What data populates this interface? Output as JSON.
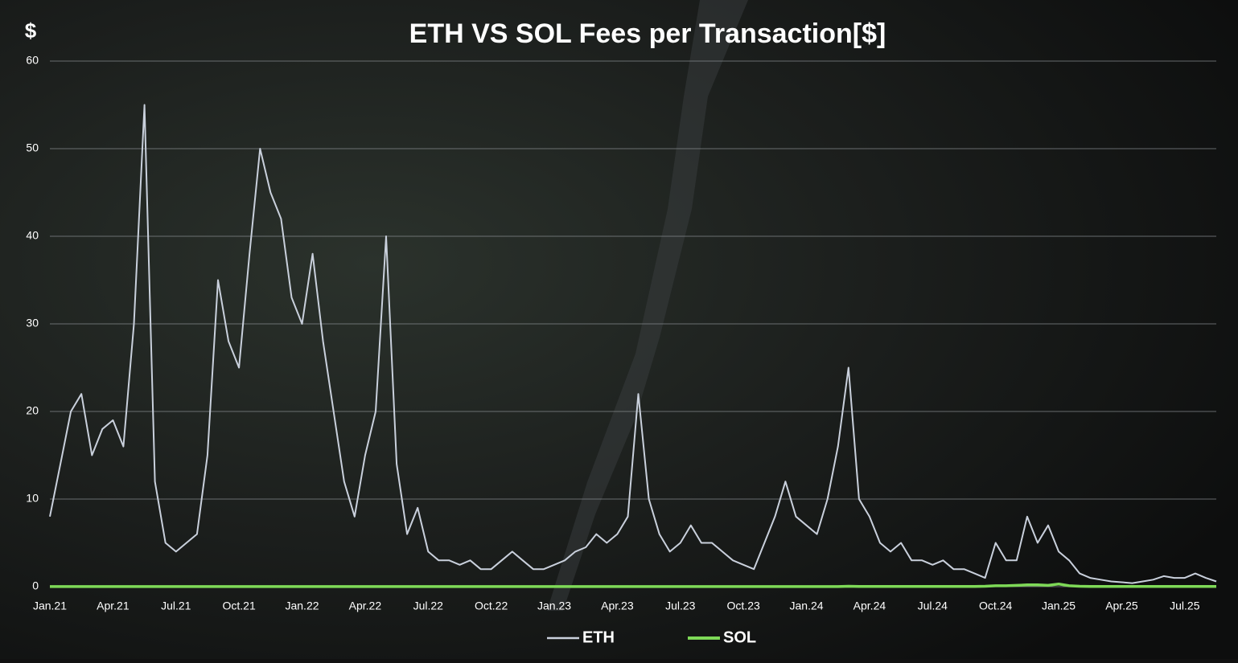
{
  "chart_data": {
    "type": "line",
    "title": "ETH VS SOL Fees per Transaction[$]",
    "y_label": "$",
    "categories": [
      "Jan.21",
      null,
      null,
      null,
      null,
      null,
      "Apr.21",
      null,
      null,
      null,
      null,
      null,
      "Jul.21",
      null,
      null,
      null,
      null,
      null,
      "Oct.21",
      null,
      null,
      null,
      null,
      null,
      "Jan.22",
      null,
      null,
      null,
      null,
      null,
      "Apr.22",
      null,
      null,
      null,
      null,
      null,
      "Jul.22",
      null,
      null,
      null,
      null,
      null,
      "Oct.22",
      null,
      null,
      null,
      null,
      null,
      "Jan.23",
      null,
      null,
      null,
      null,
      null,
      "Apr.23",
      null,
      null,
      null,
      null,
      null,
      "Jul.23",
      null,
      null,
      null,
      null,
      null,
      "Oct.23",
      null,
      null,
      null,
      null,
      null,
      "Jan.24",
      null,
      null,
      null,
      null,
      null,
      "Apr.24",
      null,
      null,
      null,
      null,
      null,
      "Jul.24",
      null,
      null,
      null,
      null,
      null,
      "Oct.24",
      null,
      null,
      null,
      null,
      null,
      "Jan.25",
      null,
      null,
      null,
      null,
      null,
      "Apr.25",
      null,
      null,
      null,
      null,
      null,
      "Jul.25",
      null,
      null,
      null
    ],
    "series": [
      {
        "name": "ETH",
        "color": "#c9d0dc",
        "values": [
          8,
          14,
          20,
          22,
          15,
          18,
          19,
          16,
          30,
          55,
          12,
          5,
          4,
          5,
          6,
          15,
          35,
          28,
          25,
          38,
          50,
          45,
          42,
          33,
          30,
          38,
          28,
          20,
          12,
          8,
          15,
          20,
          40,
          14,
          6,
          9,
          4,
          3,
          3,
          2.5,
          3,
          2,
          2,
          3,
          4,
          3,
          2,
          2,
          2.5,
          3,
          4,
          4.5,
          6,
          5,
          6,
          8,
          22,
          10,
          6,
          4,
          5,
          7,
          5,
          5,
          4,
          3,
          2.5,
          2,
          5,
          8,
          12,
          8,
          7,
          6,
          10,
          16,
          25,
          10,
          8,
          5,
          4,
          5,
          3,
          3,
          2.5,
          3,
          2,
          2,
          1.5,
          1,
          5,
          3,
          3,
          8,
          5,
          7,
          4,
          3,
          1.5,
          1,
          0.8,
          0.6,
          0.5,
          0.4,
          0.6,
          0.8,
          1.2,
          1,
          1,
          1.5,
          1,
          0.6
        ]
      },
      {
        "name": "SOL",
        "color": "#7ed957",
        "values": [
          0.01,
          0.01,
          0.01,
          0.01,
          0.01,
          0.01,
          0.01,
          0.01,
          0.01,
          0.01,
          0.01,
          0.01,
          0.01,
          0.01,
          0.01,
          0.01,
          0.01,
          0.01,
          0.01,
          0.01,
          0.01,
          0.01,
          0.01,
          0.01,
          0.01,
          0.01,
          0.01,
          0.01,
          0.01,
          0.01,
          0.01,
          0.01,
          0.01,
          0.01,
          0.01,
          0.01,
          0.01,
          0.01,
          0.01,
          0.01,
          0.01,
          0.01,
          0.01,
          0.01,
          0.01,
          0.01,
          0.01,
          0.01,
          0.01,
          0.01,
          0.01,
          0.01,
          0.01,
          0.01,
          0.01,
          0.01,
          0.01,
          0.01,
          0.01,
          0.01,
          0.01,
          0.01,
          0.01,
          0.01,
          0.01,
          0.01,
          0.01,
          0.01,
          0.01,
          0.01,
          0.01,
          0.01,
          0.01,
          0.01,
          0.01,
          0.01,
          0.05,
          0.03,
          0.02,
          0.02,
          0.02,
          0.02,
          0.02,
          0.02,
          0.02,
          0.02,
          0.02,
          0.02,
          0.03,
          0.05,
          0.1,
          0.1,
          0.15,
          0.2,
          0.2,
          0.15,
          0.3,
          0.1,
          0.05,
          0.03,
          0.02,
          0.02,
          0.02,
          0.02,
          0.02,
          0.02,
          0.02,
          0.02,
          0.02,
          0.02,
          0.02,
          0.02
        ]
      }
    ],
    "ylim": [
      0,
      60
    ],
    "yticks": [
      0,
      10,
      20,
      30,
      40,
      50,
      60
    ],
    "grid": true,
    "legend": "bottom"
  }
}
